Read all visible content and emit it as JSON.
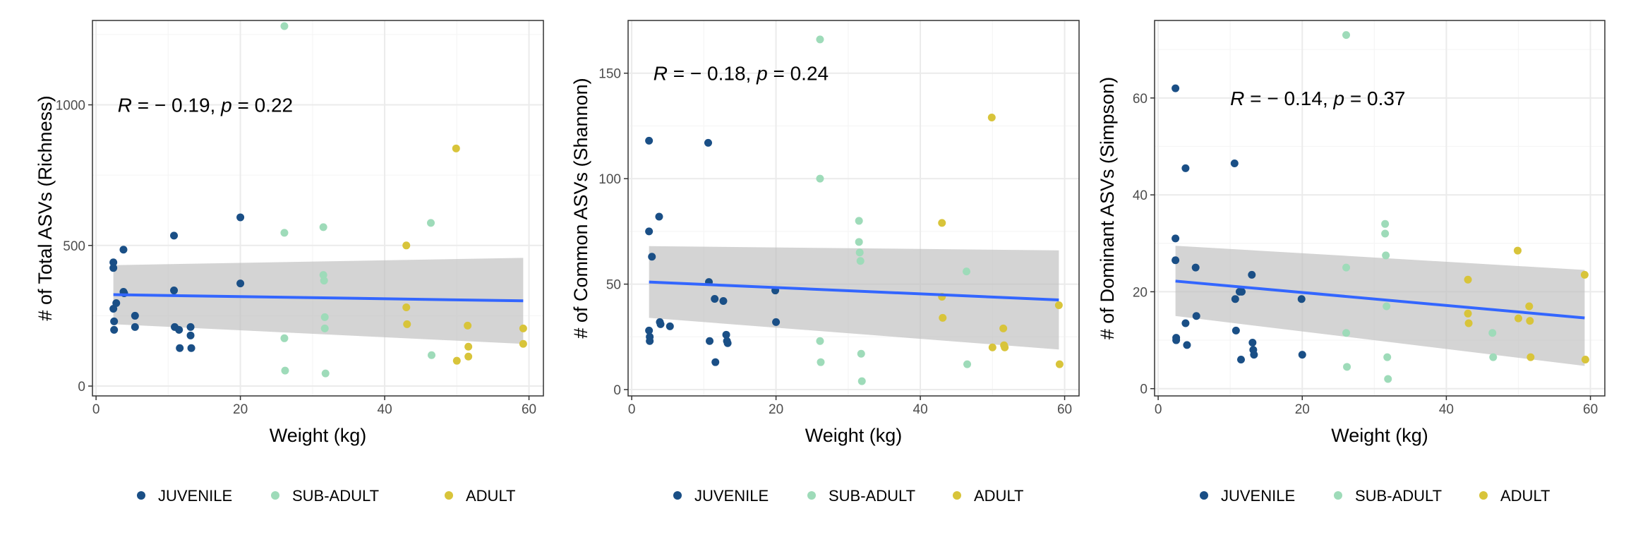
{
  "colors": {
    "juvenile": "#1a4f86",
    "sub_adult": "#9edbb9",
    "adult": "#d8c43a",
    "fit_line": "#3366ff",
    "ribbon": "#bdbdbd",
    "grid_major": "#ebebeb",
    "grid_minor": "#f5f5f5"
  },
  "chart_data": [
    {
      "type": "scatter",
      "xlabel": "Weight (kg)",
      "ylabel": "# of Total ASVs (Richness)",
      "xlim": [
        -0.5,
        62
      ],
      "ylim": [
        -35,
        1300
      ],
      "x_ticks": [
        0,
        20,
        40,
        60
      ],
      "x_tick_labels": [
        "0",
        "20",
        "40",
        "60"
      ],
      "y_ticks": [
        0,
        500,
        1000
      ],
      "y_tick_labels": [
        "0",
        "500",
        "1000"
      ],
      "grid": true,
      "legend_position": "bottom",
      "annotation": {
        "r_label": "R",
        "r_value": " = − 0.19, ",
        "p_label": "p",
        "p_value": " = 0.22",
        "x": 3,
        "y": 1000
      },
      "fit": {
        "x": [
          2.4,
          59.2
        ],
        "y": [
          325,
          303
        ],
        "ci_upper": [
          430,
          456
        ],
        "ci_lower": [
          220,
          150
        ]
      },
      "series": [
        {
          "name": "JUVENILE",
          "color_key": "juvenile",
          "x": [
            2.4,
            2.4,
            2.4,
            2.5,
            2.5,
            2.8,
            3.8,
            3.8,
            3.9,
            5.4,
            5.4,
            10.8,
            10.8,
            10.9,
            11.5,
            11.6,
            13.1,
            13.1,
            13.2,
            20.0,
            20.0
          ],
          "y": [
            440,
            420,
            275,
            230,
            200,
            295,
            485,
            335,
            330,
            250,
            210,
            535,
            340,
            210,
            200,
            135,
            210,
            180,
            135,
            600,
            365
          ]
        },
        {
          "name": "SUB-ADULT",
          "color_key": "sub_adult",
          "x": [
            26.1,
            26.1,
            26.1,
            26.2,
            31.5,
            31.5,
            31.6,
            31.7,
            31.7,
            31.8,
            46.4,
            46.5
          ],
          "y": [
            1280,
            545,
            170,
            55,
            565,
            395,
            375,
            245,
            205,
            45,
            580,
            110
          ]
        },
        {
          "name": "ADULT",
          "color_key": "adult",
          "x": [
            43.0,
            43.0,
            43.1,
            49.9,
            50.0,
            51.5,
            51.6,
            51.6,
            59.2,
            59.2
          ],
          "y": [
            500,
            280,
            220,
            845,
            90,
            215,
            140,
            105,
            205,
            150
          ]
        }
      ]
    },
    {
      "type": "scatter",
      "xlabel": "Weight (kg)",
      "ylabel": "# of Common ASVs (Shannon)",
      "xlim": [
        -0.5,
        62
      ],
      "ylim": [
        -3,
        175
      ],
      "x_ticks": [
        0,
        20,
        40,
        60
      ],
      "x_tick_labels": [
        "0",
        "20",
        "40",
        "60"
      ],
      "y_ticks": [
        0,
        50,
        100,
        150
      ],
      "y_tick_labels": [
        "0",
        "50",
        "100",
        "150"
      ],
      "grid": true,
      "legend_position": "bottom",
      "annotation": {
        "r_label": "R",
        "r_value": " = − 0.18, ",
        "p_label": "p",
        "p_value": " = 0.24",
        "x": 3,
        "y": 150
      },
      "fit": {
        "x": [
          2.4,
          59.2
        ],
        "y": [
          51,
          42.5
        ],
        "ci_upper": [
          68,
          66
        ],
        "ci_lower": [
          34,
          19
        ]
      },
      "series": [
        {
          "name": "JUVENILE",
          "color_key": "juvenile",
          "x": [
            2.4,
            2.4,
            2.4,
            2.5,
            2.5,
            2.8,
            3.8,
            3.9,
            4.0,
            5.3,
            10.6,
            10.7,
            10.8,
            11.5,
            11.6,
            12.7,
            13.1,
            13.2,
            13.3,
            19.9,
            20.0
          ],
          "y": [
            118,
            75,
            28,
            25,
            23,
            63,
            82,
            32,
            31,
            30,
            117,
            51,
            23,
            43,
            13,
            42,
            26,
            23,
            22,
            47,
            32
          ]
        },
        {
          "name": "SUB-ADULT",
          "color_key": "sub_adult",
          "x": [
            26.1,
            26.1,
            26.1,
            26.2,
            31.5,
            31.5,
            31.6,
            31.7,
            31.8,
            31.9,
            46.4,
            46.5
          ],
          "y": [
            166,
            100,
            23,
            13,
            80,
            70,
            65,
            61,
            17,
            4,
            56,
            12
          ]
        },
        {
          "name": "ADULT",
          "color_key": "adult",
          "x": [
            43.0,
            43.0,
            43.1,
            49.9,
            50.0,
            51.5,
            51.6,
            51.7,
            59.2,
            59.3
          ],
          "y": [
            79,
            44,
            34,
            129,
            20,
            29,
            21,
            20,
            40,
            12
          ]
        }
      ]
    },
    {
      "type": "scatter",
      "xlabel": "Weight (kg)",
      "ylabel": "# of Dominant ASVs (Simpson)",
      "xlim": [
        -0.5,
        62
      ],
      "ylim": [
        -1.5,
        76
      ],
      "x_ticks": [
        0,
        20,
        40,
        60
      ],
      "x_tick_labels": [
        "0",
        "20",
        "40",
        "60"
      ],
      "y_ticks": [
        0,
        20,
        40,
        60
      ],
      "y_tick_labels": [
        "0",
        "20",
        "40",
        "60"
      ],
      "grid": true,
      "legend_position": "bottom",
      "annotation": {
        "r_label": "R",
        "r_value": " = − 0.14, ",
        "p_label": "p",
        "p_value": " = 0.37",
        "x": 10,
        "y": 60
      },
      "fit": {
        "x": [
          2.4,
          59.2
        ],
        "y": [
          22.2,
          14.6
        ],
        "ci_upper": [
          29.5,
          24.5
        ],
        "ci_lower": [
          15,
          4.7
        ]
      },
      "series": [
        {
          "name": "JUVENILE",
          "color_key": "juvenile",
          "x": [
            2.4,
            2.4,
            2.4,
            2.5,
            2.5,
            3.8,
            3.8,
            4.0,
            5.2,
            5.3,
            10.6,
            10.7,
            10.8,
            11.3,
            11.5,
            11.6,
            13.0,
            13.1,
            13.2,
            13.3,
            19.9,
            20.0
          ],
          "y": [
            62,
            31,
            26.5,
            10.5,
            10,
            45.5,
            13.5,
            9,
            25,
            15,
            46.5,
            18.5,
            12,
            20,
            6,
            20,
            23.5,
            9.5,
            8,
            7,
            18.5,
            7
          ]
        },
        {
          "name": "SUB-ADULT",
          "color_key": "sub_adult",
          "x": [
            26.1,
            26.1,
            26.1,
            26.2,
            31.5,
            31.5,
            31.6,
            31.7,
            31.8,
            31.9,
            46.4,
            46.5
          ],
          "y": [
            73,
            25,
            11.5,
            4.5,
            34,
            32,
            27.5,
            17,
            6.5,
            2,
            11.5,
            6.5
          ]
        },
        {
          "name": "ADULT",
          "color_key": "adult",
          "x": [
            43.0,
            43.0,
            43.1,
            49.9,
            50.0,
            51.5,
            51.6,
            51.7,
            59.2,
            59.3
          ],
          "y": [
            22.5,
            15.5,
            13.5,
            28.5,
            14.5,
            17,
            14,
            6.5,
            23.5,
            6
          ]
        }
      ]
    }
  ]
}
